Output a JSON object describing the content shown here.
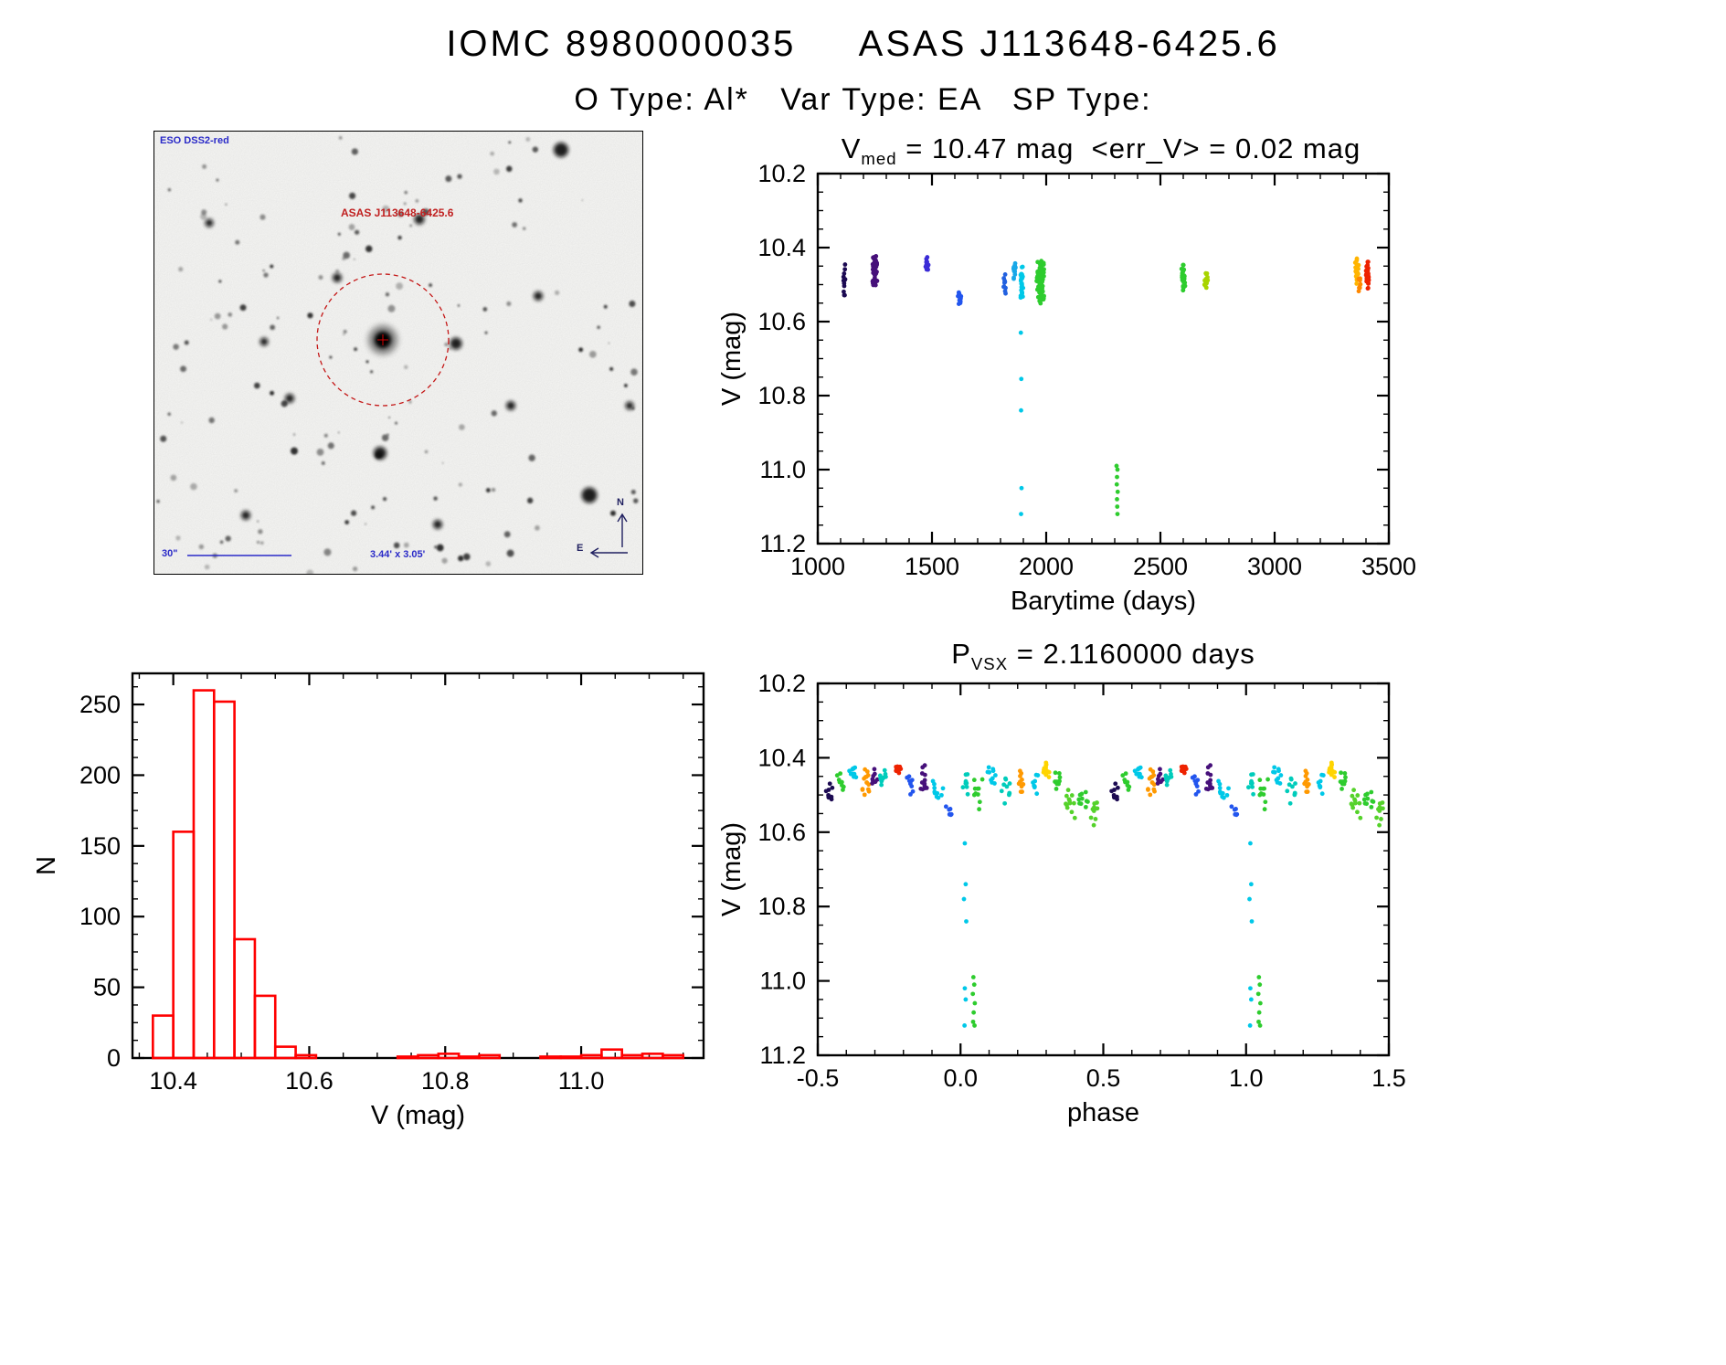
{
  "page": {
    "title": "IOMC 8980000035     ASAS J113648-6425.6",
    "subtitle": "O Type: Al*   Var Type: EA   SP Type:"
  },
  "finder": {
    "survey_label": "ESO DSS2-red",
    "target_label": "ASAS J113648-6425.6",
    "scalebar_label": "30\"",
    "size_label": "3.44' x 3.05'",
    "compass_north": "N",
    "compass_east": "E"
  },
  "chart_data": [
    {
      "id": "lightcurve",
      "type": "scatter",
      "title_parts": {
        "sym": "V",
        "sub": "med",
        "rest": " = 10.47 mag  <err_V> = 0.02 mag"
      },
      "v_med_mag": 10.47,
      "err_v_mag": 0.02,
      "xlabel": "Barytime (days)",
      "ylabel": "V (mag)",
      "xlim": [
        1000,
        3500
      ],
      "ylim": [
        10.2,
        11.2
      ],
      "invert_y": true,
      "xticks": [
        1000,
        1500,
        2000,
        2500,
        3000,
        3500
      ],
      "xtick_labels": [
        "1000",
        "1500",
        "2000",
        "2500",
        "3000",
        "3500"
      ],
      "yticks": [
        10.2,
        10.4,
        10.6,
        10.8,
        11.0,
        11.2
      ],
      "ytick_labels": [
        "10.2",
        "10.4",
        "10.6",
        "10.8",
        "11.0",
        "11.2"
      ],
      "xminor_step": 100,
      "yminor_step": 0.05,
      "clusters": [
        {
          "x": 1115,
          "xs": 6,
          "y": 10.49,
          "ys": 0.05,
          "n": 12,
          "color": "#1c0a52"
        },
        {
          "x": 1250,
          "xs": 11,
          "y": 10.46,
          "ys": 0.05,
          "n": 46,
          "color": "#46107a"
        },
        {
          "x": 1478,
          "xs": 8,
          "y": 10.445,
          "ys": 0.027,
          "n": 16,
          "color": "#3a2bd6"
        },
        {
          "x": 1620,
          "xs": 10,
          "y": 10.53,
          "ys": 0.024,
          "n": 14,
          "color": "#2255ee"
        },
        {
          "x": 1820,
          "xs": 8,
          "y": 10.5,
          "ys": 0.03,
          "n": 10,
          "color": "#2261e0"
        },
        {
          "x": 1862,
          "xs": 8,
          "y": 10.46,
          "ys": 0.03,
          "n": 12,
          "color": "#18a8e8"
        },
        {
          "x": 1893,
          "xs": 7,
          "y": 10.5,
          "ys": 0.065,
          "n": 26,
          "color": "#00c8e8"
        },
        {
          "x": 1975,
          "xs": 18,
          "y": 10.49,
          "ys": 0.065,
          "n": 95,
          "color": "#2ecc2e"
        },
        {
          "x": 2600,
          "xs": 10,
          "y": 10.48,
          "ys": 0.04,
          "n": 40,
          "color": "#2ecc2e"
        },
        {
          "x": 2700,
          "xs": 9,
          "y": 10.485,
          "ys": 0.026,
          "n": 18,
          "color": "#a8d400"
        },
        {
          "x": 3360,
          "xs": 10,
          "y": 10.465,
          "ys": 0.04,
          "n": 26,
          "color": "#ffb400"
        },
        {
          "x": 3372,
          "xs": 6,
          "y": 10.5,
          "ys": 0.03,
          "n": 10,
          "color": "#ff8800"
        },
        {
          "x": 3408,
          "xs": 9,
          "y": 10.475,
          "ys": 0.05,
          "n": 40,
          "color": "#ee2200"
        }
      ],
      "outliers": [
        {
          "x": 1889,
          "y": 10.63,
          "color": "#00c8e8"
        },
        {
          "x": 1891,
          "y": 10.755,
          "color": "#00c8e8"
        },
        {
          "x": 1890,
          "y": 10.84,
          "color": "#00c8e8"
        },
        {
          "x": 1892,
          "y": 11.05,
          "color": "#00c8e8"
        },
        {
          "x": 1890,
          "y": 11.12,
          "color": "#00c8e8"
        },
        {
          "x": 2308,
          "y": 10.99,
          "color": "#2ecc2e"
        },
        {
          "x": 2312,
          "y": 11.0,
          "color": "#2ecc2e"
        },
        {
          "x": 2310,
          "y": 11.02,
          "color": "#2ecc2e"
        },
        {
          "x": 2309,
          "y": 11.04,
          "color": "#2ecc2e"
        },
        {
          "x": 2313,
          "y": 11.06,
          "color": "#2ecc2e"
        },
        {
          "x": 2310,
          "y": 11.08,
          "color": "#2ecc2e"
        },
        {
          "x": 2311,
          "y": 11.1,
          "color": "#2ecc2e"
        },
        {
          "x": 2312,
          "y": 11.12,
          "color": "#2ecc2e"
        }
      ]
    },
    {
      "id": "magnitude-histogram",
      "type": "histogram",
      "color": "#ff0000",
      "xlabel": "V (mag)",
      "ylabel": "N",
      "xlim": [
        10.34,
        11.18
      ],
      "ylim": [
        0,
        272
      ],
      "invert_y": false,
      "xticks": [
        10.4,
        10.6,
        10.8,
        11.0
      ],
      "xtick_labels": [
        "10.4",
        "10.6",
        "10.8",
        "11.0"
      ],
      "yticks": [
        0,
        50,
        100,
        150,
        200,
        250
      ],
      "ytick_labels": [
        "0",
        "50",
        "100",
        "150",
        "200",
        "250"
      ],
      "xminor_step": 0.05,
      "yminor_step": 12.5,
      "bin_start": 10.37,
      "bin_width": 0.03,
      "counts": [
        30,
        160,
        260,
        252,
        84,
        44,
        8,
        2,
        0,
        0,
        0,
        0,
        1,
        2,
        3,
        1,
        2,
        0,
        0,
        1,
        1,
        2,
        6,
        2,
        3,
        2
      ]
    },
    {
      "id": "phase-folded",
      "type": "scatter",
      "title_parts": {
        "sym": "P",
        "sub": "VSX",
        "rest": " = 2.1160000 days"
      },
      "period_days": 2.116,
      "xlabel": "phase",
      "ylabel": "V (mag)",
      "xlim": [
        -0.5,
        1.5
      ],
      "ylim": [
        10.2,
        11.2
      ],
      "invert_y": true,
      "xticks": [
        -0.5,
        0,
        0.5,
        1,
        1.5
      ],
      "xtick_labels": [
        "-0.5",
        "0.0",
        "0.5",
        "1.0",
        "1.5"
      ],
      "yticks": [
        10.2,
        10.4,
        10.6,
        10.8,
        11.0,
        11.2
      ],
      "ytick_labels": [
        "10.2",
        "10.4",
        "10.6",
        "10.8",
        "11.0",
        "11.2"
      ],
      "xminor_step": 0.1,
      "yminor_step": 0.05,
      "duplicate_period": 1.0,
      "clusters": [
        {
          "x": -0.46,
          "xs": 0.015,
          "y": 10.5,
          "ys": 0.04,
          "n": 9,
          "color": "#1c0a52"
        },
        {
          "x": -0.42,
          "xs": 0.015,
          "y": 10.47,
          "ys": 0.03,
          "n": 8,
          "color": "#2ecc2e"
        },
        {
          "x": -0.38,
          "xs": 0.02,
          "y": 10.44,
          "ys": 0.03,
          "n": 10,
          "color": "#00c8e8"
        },
        {
          "x": -0.33,
          "xs": 0.02,
          "y": 10.47,
          "ys": 0.05,
          "n": 14,
          "color": "#ff9900"
        },
        {
          "x": -0.3,
          "xs": 0.015,
          "y": 10.46,
          "ys": 0.04,
          "n": 8,
          "color": "#46107a"
        },
        {
          "x": -0.27,
          "xs": 0.018,
          "y": 10.46,
          "ys": 0.04,
          "n": 9,
          "color": "#00ccbb"
        },
        {
          "x": -0.22,
          "xs": 0.012,
          "y": 10.43,
          "ys": 0.018,
          "n": 14,
          "color": "#ee2200"
        },
        {
          "x": -0.18,
          "xs": 0.015,
          "y": 10.47,
          "ys": 0.035,
          "n": 9,
          "color": "#2255ee"
        },
        {
          "x": -0.13,
          "xs": 0.02,
          "y": 10.46,
          "ys": 0.045,
          "n": 12,
          "color": "#46107a"
        },
        {
          "x": -0.08,
          "xs": 0.02,
          "y": 10.49,
          "ys": 0.045,
          "n": 10,
          "color": "#00c8e8"
        },
        {
          "x": -0.04,
          "xs": 0.012,
          "y": 10.54,
          "ys": 0.03,
          "n": 6,
          "color": "#2255ee"
        },
        {
          "x": 0.02,
          "xs": 0.015,
          "y": 10.47,
          "ys": 0.04,
          "n": 9,
          "color": "#00ccbb"
        },
        {
          "x": 0.06,
          "xs": 0.02,
          "y": 10.5,
          "ys": 0.05,
          "n": 10,
          "color": "#2ecc2e"
        },
        {
          "x": 0.11,
          "xs": 0.02,
          "y": 10.46,
          "ys": 0.04,
          "n": 10,
          "color": "#00c8e8"
        },
        {
          "x": 0.16,
          "xs": 0.02,
          "y": 10.48,
          "ys": 0.045,
          "n": 10,
          "color": "#00ccbb"
        },
        {
          "x": 0.21,
          "xs": 0.02,
          "y": 10.46,
          "ys": 0.04,
          "n": 10,
          "color": "#ff9900"
        },
        {
          "x": 0.26,
          "xs": 0.018,
          "y": 10.47,
          "ys": 0.04,
          "n": 8,
          "color": "#00c8e8"
        },
        {
          "x": 0.3,
          "xs": 0.015,
          "y": 10.435,
          "ys": 0.025,
          "n": 14,
          "color": "#ffd400"
        },
        {
          "x": 0.34,
          "xs": 0.02,
          "y": 10.465,
          "ys": 0.04,
          "n": 10,
          "color": "#2ecc2e"
        },
        {
          "x": 0.385,
          "xs": 0.02,
          "y": 10.52,
          "ys": 0.05,
          "n": 12,
          "color": "#55d22a"
        },
        {
          "x": 0.43,
          "xs": 0.02,
          "y": 10.52,
          "ys": 0.04,
          "n": 10,
          "color": "#2ecc2e"
        },
        {
          "x": 0.47,
          "xs": 0.02,
          "y": 10.55,
          "ys": 0.04,
          "n": 10,
          "color": "#55d22a"
        }
      ],
      "outliers": [
        {
          "x": 0.015,
          "y": 10.63,
          "color": "#00c8e8"
        },
        {
          "x": 0.018,
          "y": 10.74,
          "color": "#00c8e8"
        },
        {
          "x": 0.012,
          "y": 10.78,
          "color": "#00c8e8"
        },
        {
          "x": 0.02,
          "y": 10.84,
          "color": "#00c8e8"
        },
        {
          "x": 0.015,
          "y": 11.02,
          "color": "#00c8e8"
        },
        {
          "x": 0.018,
          "y": 11.05,
          "color": "#00c8e8"
        },
        {
          "x": 0.014,
          "y": 11.12,
          "color": "#00c8e8"
        },
        {
          "x": 0.045,
          "y": 10.99,
          "color": "#2ecc2e"
        },
        {
          "x": 0.048,
          "y": 11.01,
          "color": "#2ecc2e"
        },
        {
          "x": 0.043,
          "y": 11.035,
          "color": "#2ecc2e"
        },
        {
          "x": 0.05,
          "y": 11.06,
          "color": "#2ecc2e"
        },
        {
          "x": 0.046,
          "y": 11.085,
          "color": "#2ecc2e"
        },
        {
          "x": 0.044,
          "y": 11.11,
          "color": "#2ecc2e"
        },
        {
          "x": 0.049,
          "y": 11.12,
          "color": "#2ecc2e"
        }
      ]
    }
  ]
}
